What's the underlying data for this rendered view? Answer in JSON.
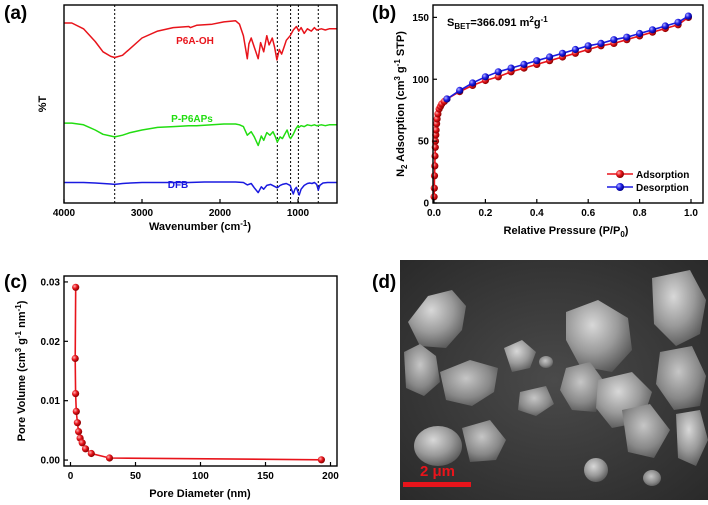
{
  "panels": {
    "a": "(a)",
    "b": "(b)",
    "c": "(c)",
    "d": "(d)"
  },
  "chart_data": [
    {
      "panel": "a",
      "type": "line",
      "xlabel": "Wavenumber (cm",
      "xlabel_sup": "-1",
      "xlabel_end": ")",
      "ylabel": "%T",
      "xlim": [
        4000,
        500
      ],
      "xticks": [
        "4000",
        "3000",
        "2000",
        "1000"
      ],
      "xtick_values": [
        4000,
        3000,
        2000,
        1000
      ],
      "reference_lines": [
        3350,
        1265,
        1095,
        995,
        740
      ],
      "series": [
        {
          "name": "P6A-OH",
          "color": "#e8141b",
          "x": [
            4000,
            3900,
            3750,
            3600,
            3500,
            3400,
            3350,
            3250,
            3150,
            3000,
            2800,
            2600,
            2400,
            2380,
            2300,
            2100,
            1950,
            1800,
            1750,
            1700,
            1650,
            1630,
            1600,
            1560,
            1510,
            1480,
            1440,
            1400,
            1370,
            1330,
            1300,
            1270,
            1240,
            1210,
            1180,
            1150,
            1100,
            1060,
            1020,
            990,
            960,
            920,
            880,
            830,
            790,
            760,
            700,
            650,
            600,
            550,
            500
          ],
          "y": [
            0.93,
            0.93,
            0.88,
            0.77,
            0.68,
            0.64,
            0.63,
            0.65,
            0.71,
            0.8,
            0.86,
            0.89,
            0.9,
            0.89,
            0.91,
            0.92,
            0.94,
            0.95,
            0.92,
            0.82,
            0.62,
            0.75,
            0.8,
            0.72,
            0.62,
            0.76,
            0.68,
            0.82,
            0.74,
            0.8,
            0.72,
            0.61,
            0.7,
            0.66,
            0.72,
            0.78,
            0.82,
            0.87,
            0.9,
            0.86,
            0.89,
            0.84,
            0.88,
            0.86,
            0.89,
            0.87,
            0.88,
            0.87,
            0.88,
            0.88,
            0.88
          ]
        },
        {
          "name": "P-P6APs",
          "color": "#22dd11",
          "x": [
            4000,
            3900,
            3750,
            3600,
            3500,
            3400,
            3350,
            3250,
            3150,
            3000,
            2800,
            2600,
            2400,
            2300,
            2100,
            1950,
            1800,
            1750,
            1700,
            1650,
            1600,
            1560,
            1510,
            1470,
            1440,
            1400,
            1360,
            1320,
            1290,
            1265,
            1230,
            1200,
            1170,
            1140,
            1110,
            1095,
            1060,
            1030,
            1000,
            990,
            960,
            920,
            880,
            830,
            790,
            760,
            700,
            650,
            600,
            550,
            500
          ],
          "y": [
            0.58,
            0.58,
            0.56,
            0.5,
            0.45,
            0.43,
            0.42,
            0.44,
            0.47,
            0.5,
            0.53,
            0.54,
            0.55,
            0.55,
            0.56,
            0.57,
            0.57,
            0.56,
            0.54,
            0.44,
            0.48,
            0.42,
            0.32,
            0.43,
            0.38,
            0.47,
            0.44,
            0.48,
            0.42,
            0.36,
            0.42,
            0.4,
            0.45,
            0.5,
            0.42,
            0.4,
            0.45,
            0.51,
            0.55,
            0.53,
            0.55,
            0.54,
            0.56,
            0.55,
            0.56,
            0.55,
            0.56,
            0.55,
            0.56,
            0.56,
            0.56
          ]
        },
        {
          "name": "DFB",
          "color": "#1a1ae0",
          "x": [
            4000,
            3900,
            3750,
            3600,
            3500,
            3400,
            3350,
            3250,
            3150,
            3000,
            2800,
            2600,
            2400,
            2200,
            2000,
            1900,
            1800,
            1700,
            1650,
            1600,
            1560,
            1510,
            1470,
            1440,
            1400,
            1350,
            1300,
            1265,
            1230,
            1200,
            1150,
            1100,
            1080,
            1060,
            1040,
            1020,
            1000,
            985,
            960,
            920,
            880,
            850,
            820,
            790,
            760,
            740,
            720,
            680,
            620,
            560,
            500
          ],
          "y": [
            0.26,
            0.26,
            0.26,
            0.25,
            0.24,
            0.23,
            0.22,
            0.24,
            0.25,
            0.26,
            0.26,
            0.26,
            0.26,
            0.27,
            0.27,
            0.27,
            0.27,
            0.26,
            0.21,
            0.24,
            0.15,
            0.05,
            0.17,
            0.12,
            0.2,
            0.22,
            0.18,
            0.15,
            0.2,
            0.22,
            0.24,
            0.2,
            0.1,
            0.02,
            0.12,
            0.16,
            0.06,
            0.0,
            0.12,
            0.2,
            0.24,
            0.25,
            0.24,
            0.26,
            0.22,
            0.1,
            0.2,
            0.25,
            0.26,
            0.26,
            0.26
          ]
        }
      ]
    },
    {
      "panel": "b",
      "type": "line",
      "title": "S",
      "title_sub": "BET",
      "title_mid": "=366.091 m",
      "title_sup": "2",
      "title_mid2": "g",
      "title_sup2": "-1",
      "xlabel": "Relative Pressure (P/P",
      "xlabel_sub": "0",
      "xlabel_end": ")",
      "ylabel_parts": [
        "N",
        "2",
        " Adsorption (cm",
        "3",
        " g",
        "-1",
        " STP)"
      ],
      "xlim": [
        0,
        1.0
      ],
      "ylim": [
        0,
        160
      ],
      "xticks": [
        "0.0",
        "0.2",
        "0.4",
        "0.6",
        "0.8",
        "1.0"
      ],
      "xtick_values": [
        0,
        0.2,
        0.4,
        0.6,
        0.8,
        1.0
      ],
      "yticks": [
        "0",
        "50",
        "100",
        "150"
      ],
      "ytick_values": [
        0,
        50,
        100,
        150
      ],
      "legend_position": "bottom-right",
      "series": [
        {
          "name": "Adsorption",
          "color": "#e8141b",
          "x": [
            0.0005,
            0.001,
            0.002,
            0.003,
            0.004,
            0.005,
            0.006,
            0.007,
            0.008,
            0.01,
            0.012,
            0.015,
            0.02,
            0.025,
            0.03,
            0.04,
            0.05,
            0.1,
            0.15,
            0.2,
            0.25,
            0.3,
            0.35,
            0.4,
            0.45,
            0.5,
            0.55,
            0.6,
            0.65,
            0.7,
            0.75,
            0.8,
            0.85,
            0.9,
            0.95,
            0.99
          ],
          "y": [
            5,
            12,
            22,
            30,
            38,
            45,
            50,
            55,
            59,
            64,
            68,
            72,
            76,
            78,
            80,
            82,
            84,
            90,
            95,
            99,
            102,
            106,
            109,
            112,
            115,
            118,
            121,
            124,
            127,
            129,
            132,
            135,
            138,
            141,
            144,
            150
          ]
        },
        {
          "name": "Desorption",
          "color": "#1a1ae0",
          "x": [
            0.99,
            0.95,
            0.9,
            0.85,
            0.8,
            0.75,
            0.7,
            0.65,
            0.6,
            0.55,
            0.5,
            0.45,
            0.4,
            0.35,
            0.3,
            0.25,
            0.2,
            0.15,
            0.1,
            0.05
          ],
          "y": [
            151,
            146,
            143,
            140,
            137,
            134,
            132,
            129,
            127,
            124,
            121,
            118,
            115,
            112,
            109,
            106,
            102,
            97,
            91,
            84
          ]
        }
      ]
    },
    {
      "panel": "c",
      "type": "line",
      "xlabel": "Pore Diameter (nm)",
      "ylabel_parts": [
        "Pore Volume (cm",
        "3",
        " g",
        "-1",
        " nm",
        "-1",
        ")"
      ],
      "xlim": [
        -5,
        205
      ],
      "ylim": [
        -0.001,
        0.031
      ],
      "xticks": [
        "0",
        "50",
        "100",
        "150",
        "200"
      ],
      "xtick_values": [
        0,
        50,
        100,
        150,
        200
      ],
      "yticks": [
        "0.00",
        "0.01",
        "0.02",
        "0.03"
      ],
      "ytick_values": [
        0,
        0.01,
        0.02,
        0.03
      ],
      "series": [
        {
          "color": "#e8141b",
          "x": [
            4.0,
            3.6,
            3.9,
            4.5,
            5.3,
            6.2,
            7.4,
            9.0,
            11.5,
            16.0,
            30.0,
            193.0
          ],
          "y": [
            0.0291,
            0.0171,
            0.0112,
            0.0082,
            0.0063,
            0.0048,
            0.0037,
            0.0029,
            0.0019,
            0.0011,
            0.00035,
            5e-05
          ]
        }
      ]
    }
  ],
  "sem": {
    "scale_bar_label": "2 μm"
  }
}
